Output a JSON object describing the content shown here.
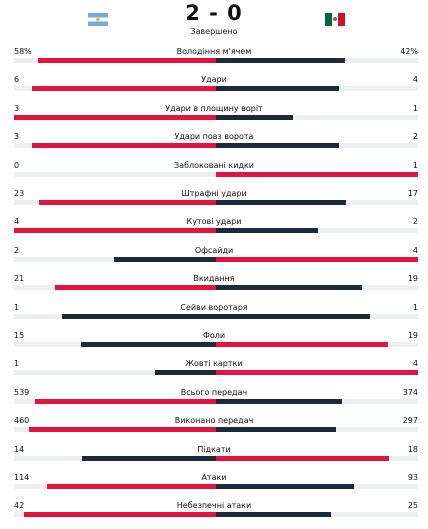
{
  "match": {
    "home_flag": "argentina-flag",
    "away_flag": "mexico-flag",
    "score": "2 - 0",
    "status": "Завершено"
  },
  "colors": {
    "winner": "#e5133f",
    "loser": "#1e2a35",
    "track": "#edeef0"
  },
  "stats": [
    {
      "label": "Володіння м'ячем",
      "home": "58%",
      "away": "42%",
      "home_value": 58,
      "away_value": 42
    },
    {
      "label": "Удари",
      "home": "6",
      "away": "4",
      "home_value": 6,
      "away_value": 4
    },
    {
      "label": "Удари в площину воріт",
      "home": "3",
      "away": "1",
      "home_value": 3,
      "away_value": 1
    },
    {
      "label": "Удари повз ворота",
      "home": "3",
      "away": "2",
      "home_value": 3,
      "away_value": 2
    },
    {
      "label": "Заблоковані кидки",
      "home": "0",
      "away": "1",
      "home_value": 0,
      "away_value": 1
    },
    {
      "label": "Штрафні удари",
      "home": "23",
      "away": "17",
      "home_value": 23,
      "away_value": 17
    },
    {
      "label": "Кутові удари",
      "home": "4",
      "away": "2",
      "home_value": 4,
      "away_value": 2
    },
    {
      "label": "Офсайди",
      "home": "2",
      "away": "4",
      "home_value": 2,
      "away_value": 4
    },
    {
      "label": "Вкидання",
      "home": "21",
      "away": "19",
      "home_value": 21,
      "away_value": 19
    },
    {
      "label": "Сейви воротаря",
      "home": "1",
      "away": "1",
      "home_value": 1,
      "away_value": 1
    },
    {
      "label": "Фоли",
      "home": "15",
      "away": "19",
      "home_value": 15,
      "away_value": 19
    },
    {
      "label": "Жовті картки",
      "home": "1",
      "away": "4",
      "home_value": 1,
      "away_value": 4
    },
    {
      "label": "Всього передач",
      "home": "539",
      "away": "374",
      "home_value": 539,
      "away_value": 374
    },
    {
      "label": "Виконано передач",
      "home": "460",
      "away": "297",
      "home_value": 460,
      "away_value": 297
    },
    {
      "label": "Підкати",
      "home": "14",
      "away": "18",
      "home_value": 14,
      "away_value": 18
    },
    {
      "label": "Атаки",
      "home": "114",
      "away": "93",
      "home_value": 114,
      "away_value": 93
    },
    {
      "label": "Небезпечні атаки",
      "home": "42",
      "away": "25",
      "home_value": 42,
      "away_value": 25
    }
  ]
}
